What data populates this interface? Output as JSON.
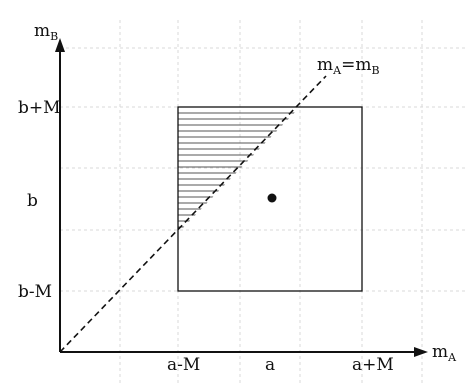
{
  "axes": {
    "y_label": {
      "main": "m",
      "sub": "B"
    },
    "x_label": {
      "main": "m",
      "sub": "A"
    }
  },
  "y_ticks": [
    "b+M",
    "b",
    "b-M"
  ],
  "x_ticks": [
    "a-M",
    "a",
    "a+M"
  ],
  "diagonal_label": {
    "part1": "m",
    "sub1": "A",
    "eq": "=m",
    "sub2": "B"
  },
  "colors": {
    "line": "#111111",
    "grid": "#d9d9d9"
  }
}
